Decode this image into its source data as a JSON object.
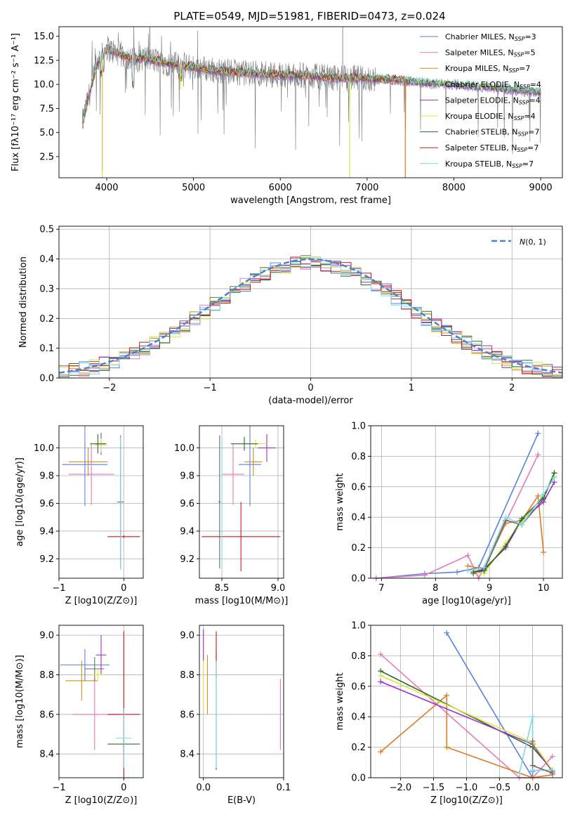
{
  "figure_title": "PLATE=0549, MJD=51981, FIBERID=0473, z=0.024",
  "colors": {
    "Chabrier MILES": "#5a7fe0",
    "Salpeter MILES": "#e879b8",
    "Kroupa MILES": "#c8901e",
    "Chabrier ELODIE": "#6b6b6b",
    "Salpeter ELODIE": "#9b30c8",
    "Kroupa ELODIE": "#d8e83a",
    "Chabrier STELIB": "#2c6a2c",
    "Salpeter STELIB": "#c01818",
    "Kroupa STELIB": "#7fd8e0",
    "data": "#7a7a7a",
    "gauss": "#4a82d0",
    "orange": "#e07a20"
  },
  "chart_data": [
    {
      "id": "spectrum",
      "type": "line",
      "title": "PLATE=0549, MJD=51981, FIBERID=0473, z=0.024",
      "xlabel": "wavelength [Angstrom, rest frame]",
      "ylabel": "Flux [fλ10⁻¹⁷ erg cm⁻² s⁻¹ A⁻¹]",
      "xlim": [
        3450,
        9250
      ],
      "ylim": [
        0.3,
        16
      ],
      "xticks": [
        "4000",
        "5000",
        "6000",
        "7000",
        "8000",
        "9000"
      ],
      "yticks": [
        "2.5",
        "5.0",
        "7.5",
        "10.0",
        "12.5",
        "15.0"
      ],
      "grid": false,
      "legend_position": "top-right",
      "legend": [
        "Chabrier MILES, N_SSP=3",
        "Salpeter MILES, N_SSP=5",
        "Kroupa MILES, N_SSP=7",
        "Chabrier ELODIE, N_SSP=4",
        "Salpeter ELODIE, N_SSP=4",
        "Kroupa ELODIE, N_SSP=4",
        "Chabrier STELIB, N_SSP=7",
        "Salpeter STELIB, N_SSP=7",
        "Kroupa STELIB, N_SSP=7"
      ],
      "legend_labels": [
        {
          "base": "Chabrier MILES, N",
          "sub": "SSP",
          "tail": "=3"
        },
        {
          "base": "Salpeter MILES, N",
          "sub": "SSP",
          "tail": "=5"
        },
        {
          "base": "Kroupa MILES, N",
          "sub": "SSP",
          "tail": "=7"
        },
        {
          "base": "Chabrier ELODIE, N",
          "sub": "SSP",
          "tail": "=4"
        },
        {
          "base": "Salpeter ELODIE, N",
          "sub": "SSP",
          "tail": "=4"
        },
        {
          "base": "Kroupa ELODIE, N",
          "sub": "SSP",
          "tail": "=4"
        },
        {
          "base": "Chabrier STELIB, N",
          "sub": "SSP",
          "tail": "=7"
        },
        {
          "base": "Salpeter STELIB, N",
          "sub": "SSP",
          "tail": "=7"
        },
        {
          "base": "Kroupa STELIB, N",
          "sub": "SSP",
          "tail": "=7"
        }
      ],
      "continuum": {
        "x": [
          3720,
          3800,
          3900,
          3950,
          4000,
          4100,
          4200,
          4300,
          4400,
          4500,
          4700,
          5000,
          5300,
          5600,
          6000,
          6300,
          6600,
          7000,
          7300,
          7600,
          8000,
          8500,
          9000
        ],
        "y": [
          6.0,
          9.0,
          12.5,
          13.0,
          13.8,
          13.3,
          13.0,
          12.5,
          12.8,
          12.6,
          12.2,
          11.8,
          11.4,
          11.2,
          11.0,
          10.9,
          10.7,
          10.6,
          10.5,
          10.2,
          10.0,
          9.6,
          9.2
        ]
      },
      "model_colors": [
        "#5a7fe0",
        "#e879b8",
        "#c8901e",
        "#6b6b6b",
        "#9b30c8",
        "#d8e83a",
        "#2c6a2c",
        "#c01818",
        "#7fd8e0"
      ]
    },
    {
      "id": "residuals",
      "type": "line",
      "xlabel": "(data-model)/error",
      "ylabel": "Normed distribution",
      "xlim": [
        -2.5,
        2.5
      ],
      "ylim": [
        0,
        0.51
      ],
      "xticks": [
        "−2",
        "−1",
        "0",
        "1",
        "2"
      ],
      "yticks": [
        "0.0",
        "0.1",
        "0.2",
        "0.3",
        "0.4",
        "0.5"
      ],
      "grid": true,
      "legend_position": "top-right",
      "legend": [
        "N(0, 1)"
      ],
      "gaussian": {
        "mean": 0,
        "sigma": 1
      },
      "hist_bin_width": 0.1
    },
    {
      "id": "age-vs-z",
      "type": "scatter",
      "xlabel": "Z [log10(Z/Z⊙)]",
      "ylabel": "age [log10(age/yr)]",
      "xlim": [
        -1.0,
        0.3
      ],
      "ylim": [
        9.06,
        10.16
      ],
      "xticks": [
        "−1",
        "0"
      ],
      "yticks": [
        "9.2",
        "9.4",
        "9.6",
        "9.8",
        "10.0"
      ],
      "grid": true,
      "points": [
        {
          "model": "Chabrier MILES",
          "x": -0.6,
          "y": 9.88,
          "xerr": 0.35,
          "yerr": 0.3
        },
        {
          "model": "Salpeter MILES",
          "x": -0.5,
          "y": 9.81,
          "xerr": 0.35,
          "yerr": 0.22
        },
        {
          "model": "Kroupa MILES",
          "x": -0.55,
          "y": 9.9,
          "xerr": 0.3,
          "yerr": 0.1
        },
        {
          "model": "Chabrier ELODIE",
          "x": -0.05,
          "y": 9.61,
          "xerr": 0.05,
          "yerr": 0.48
        },
        {
          "model": "Salpeter ELODIE",
          "x": -0.35,
          "y": 10.03,
          "xerr": 0.08,
          "yerr": 0.08
        },
        {
          "model": "Kroupa ELODIE",
          "x": -0.35,
          "y": 10.02,
          "xerr": 0.1,
          "yerr": 0.05
        },
        {
          "model": "Chabrier STELIB",
          "x": -0.4,
          "y": 10.03,
          "xerr": 0.12,
          "yerr": 0.07
        },
        {
          "model": "Salpeter STELIB",
          "x": 0.0,
          "y": 9.36,
          "xerr": 0.25,
          "yerr": 0.01
        },
        {
          "model": "Kroupa STELIB",
          "x": -0.05,
          "y": 9.6,
          "xerr": 0.02,
          "yerr": 0.48
        }
      ]
    },
    {
      "id": "age-vs-mass",
      "type": "scatter",
      "xlabel": "mass [log10(M/M⊙)]",
      "ylabel": "",
      "xlim": [
        8.3,
        9.05
      ],
      "ylim": [
        9.06,
        10.16
      ],
      "xticks": [
        "8.5",
        "9.0"
      ],
      "yticks": [
        "9.2",
        "9.4",
        "9.6",
        "9.8",
        "10.0"
      ],
      "grid": true,
      "points": [
        {
          "model": "Chabrier MILES",
          "x": 8.75,
          "y": 9.88,
          "xerr": 0.1,
          "yerr": 0.3
        },
        {
          "model": "Salpeter MILES",
          "x": 8.6,
          "y": 9.81,
          "xerr": 0.1,
          "yerr": 0.22
        },
        {
          "model": "Kroupa MILES",
          "x": 8.78,
          "y": 9.9,
          "xerr": 0.08,
          "yerr": 0.1
        },
        {
          "model": "Chabrier ELODIE",
          "x": 8.48,
          "y": 9.61,
          "xerr": 0.01,
          "yerr": 0.48
        },
        {
          "model": "Salpeter ELODIE",
          "x": 8.9,
          "y": 10.0,
          "xerr": 0.08,
          "yerr": 0.1
        },
        {
          "model": "Kroupa ELODIE",
          "x": 8.8,
          "y": 10.03,
          "xerr": 0.1,
          "yerr": 0.03
        },
        {
          "model": "Chabrier STELIB",
          "x": 8.7,
          "y": 10.03,
          "xerr": 0.12,
          "yerr": 0.05
        },
        {
          "model": "Salpeter STELIB",
          "x": 8.67,
          "y": 9.36,
          "xerr": 0.35,
          "yerr": 0.25
        },
        {
          "model": "Kroupa STELIB",
          "x": 8.5,
          "y": 9.6,
          "xerr": 0.02,
          "yerr": 0.48
        }
      ]
    },
    {
      "id": "weight-vs-age",
      "type": "line",
      "xlabel": "age [log10(age/yr)]",
      "ylabel": "mass weight",
      "xlim": [
        6.8,
        10.35
      ],
      "ylim": [
        0,
        1.0
      ],
      "xticks": [
        "7",
        "8",
        "9",
        "10"
      ],
      "yticks": [
        "0.0",
        "0.2",
        "0.4",
        "0.6",
        "0.8",
        "1.0"
      ],
      "grid": true,
      "series": [
        {
          "model": "Chabrier MILES",
          "x": [
            6.9,
            7.8,
            8.4,
            8.8,
            9.9
          ],
          "y": [
            0.0,
            0.03,
            0.04,
            0.07,
            0.95
          ]
        },
        {
          "model": "Salpeter MILES",
          "x": [
            6.9,
            7.8,
            8.6,
            8.8,
            9.9
          ],
          "y": [
            0.0,
            0.02,
            0.15,
            0.0,
            0.81
          ]
        },
        {
          "model": "orange",
          "x": [
            8.6,
            8.9,
            9.3,
            9.6,
            9.9,
            10.0
          ],
          "y": [
            0.08,
            0.06,
            0.36,
            0.38,
            0.54,
            0.17
          ]
        },
        {
          "model": "Chabrier ELODIE",
          "x": [
            8.7,
            8.9,
            9.3,
            9.6,
            10.0,
            10.2
          ],
          "y": [
            0.03,
            0.05,
            0.38,
            0.35,
            0.52,
            0.69
          ]
        },
        {
          "model": "Salpeter ELODIE",
          "x": [
            8.7,
            8.9,
            9.3,
            9.6,
            10.0,
            10.2
          ],
          "y": [
            0.04,
            0.06,
            0.2,
            0.38,
            0.5,
            0.63
          ]
        },
        {
          "model": "Kroupa ELODIE",
          "x": [
            8.7,
            8.9,
            9.3,
            9.6,
            10.0,
            10.2
          ],
          "y": [
            0.04,
            0.03,
            0.23,
            0.37,
            0.54,
            0.67
          ]
        },
        {
          "model": "Chabrier STELIB",
          "x": [
            8.7,
            8.9,
            9.3,
            9.6,
            10.0,
            10.2
          ],
          "y": [
            0.04,
            0.05,
            0.21,
            0.39,
            0.53,
            0.69
          ]
        },
        {
          "model": "Kroupa STELIB",
          "x": [
            8.6,
            8.9,
            9.3,
            9.6,
            10.0,
            10.2
          ],
          "y": [
            0.05,
            0.07,
            0.4,
            0.35,
            0.55,
            0.66
          ]
        }
      ]
    },
    {
      "id": "mass-vs-z",
      "type": "scatter",
      "xlabel": "Z [log10(Z/Z⊙)]",
      "ylabel": "mass [log10(M/M⊙)]",
      "xlim": [
        -1.0,
        0.3
      ],
      "ylim": [
        8.28,
        9.05
      ],
      "xticks": [
        "−1",
        "0"
      ],
      "yticks": [
        "8.4",
        "8.6",
        "8.8",
        "9.0"
      ],
      "grid": true,
      "points": [
        {
          "model": "Chabrier MILES",
          "x": -0.6,
          "y": 8.85,
          "xerr": 0.38,
          "yerr": 0.08
        },
        {
          "model": "Salpeter MILES",
          "x": -0.45,
          "y": 8.6,
          "xerr": 0.35,
          "yerr": 0.18
        },
        {
          "model": "Kroupa MILES",
          "x": -0.65,
          "y": 8.77,
          "xerr": 0.25,
          "yerr": 0.1
        },
        {
          "model": "Chabrier ELODIE",
          "x": -0.45,
          "y": 8.83,
          "xerr": 0.15,
          "yerr": 0.06
        },
        {
          "model": "Salpeter ELODIE",
          "x": -0.35,
          "y": 8.9,
          "xerr": 0.08,
          "yerr": 0.1
        },
        {
          "model": "Kroupa ELODIE",
          "x": -0.4,
          "y": 8.8,
          "xerr": 0.1,
          "yerr": 0.03
        },
        {
          "model": "Chabrier STELIB",
          "x": 0.0,
          "y": 8.45,
          "xerr": 0.25,
          "yerr": 0.02
        },
        {
          "model": "Salpeter STELIB",
          "x": 0.0,
          "y": 8.6,
          "xerr": 0.25,
          "yerr": 0.42
        },
        {
          "model": "Kroupa STELIB",
          "x": 0.0,
          "y": 8.48,
          "xerr": 0.12,
          "yerr": 0.15
        }
      ]
    },
    {
      "id": "mass-vs-ebv",
      "type": "scatter",
      "xlabel": "E(B-V)",
      "ylabel": "",
      "xlim": [
        -0.005,
        0.1
      ],
      "ylim": [
        8.28,
        9.05
      ],
      "xticks": [
        "0.0",
        "0.1"
      ],
      "yticks": [
        "8.4",
        "8.6",
        "8.8",
        "9.0"
      ],
      "grid": true,
      "points": [
        {
          "model": "Kroupa ELODIE",
          "x": 0.0,
          "y": 8.75,
          "xerr": 0.0,
          "yerr": 0.13
        },
        {
          "model": "Salpeter ELODIE",
          "x": 0.0,
          "y": 8.95,
          "xerr": 0.0,
          "yerr": 0.08
        },
        {
          "model": "Kroupa MILES",
          "x": 0.005,
          "y": 8.75,
          "xerr": 0.0,
          "yerr": 0.15
        },
        {
          "model": "Chabrier STELIB",
          "x": 0.016,
          "y": 8.62,
          "xerr": 0.0,
          "yerr": 0.3
        },
        {
          "model": "Salpeter STELIB",
          "x": 0.016,
          "y": 8.9,
          "xerr": 0.0,
          "yerr": 0.12
        },
        {
          "model": "Kroupa STELIB",
          "x": 0.016,
          "y": 8.6,
          "xerr": 0.0,
          "yerr": 0.27
        },
        {
          "model": "Salpeter MILES",
          "x": 0.096,
          "y": 8.6,
          "xerr": 0.0,
          "yerr": 0.18
        }
      ]
    },
    {
      "id": "weight-vs-z",
      "type": "line",
      "xlabel": "Z [log10(Z/Z⊙)]",
      "ylabel": "mass weight",
      "xlim": [
        -2.45,
        0.45
      ],
      "ylim": [
        0,
        1.0
      ],
      "xticks": [
        "−2.0",
        "−1.5",
        "−1.0",
        "−0.5",
        "0.0"
      ],
      "yticks": [
        "0.0",
        "0.2",
        "0.4",
        "0.6",
        "0.8",
        "1.0"
      ],
      "grid": true,
      "series": [
        {
          "model": "Chabrier MILES",
          "x": [
            -1.3,
            0.0,
            0.0
          ],
          "y": [
            0.95,
            0.0,
            0.04
          ]
        },
        {
          "model": "Salpeter MILES",
          "x": [
            -2.3,
            -0.2,
            0.0,
            0.3
          ],
          "y": [
            0.81,
            0.0,
            0.0,
            0.14
          ]
        },
        {
          "model": "orange",
          "x": [
            -2.3,
            -1.3,
            -1.3,
            0.0,
            0.3
          ],
          "y": [
            0.17,
            0.54,
            0.2,
            0.0,
            0.02
          ]
        },
        {
          "model": "Chabrier STELIB",
          "x": [
            -2.3,
            0.0,
            0.3
          ],
          "y": [
            0.7,
            0.2,
            0.05
          ]
        },
        {
          "model": "Salpeter ELODIE",
          "x": [
            -2.3,
            0.0,
            0.3
          ],
          "y": [
            0.63,
            0.22,
            0.04
          ]
        },
        {
          "model": "Kroupa ELODIE",
          "x": [
            -2.3,
            0.0,
            0.3
          ],
          "y": [
            0.67,
            0.23,
            0.05
          ]
        },
        {
          "model": "Kroupa STELIB",
          "x": [
            -0.2,
            0.0,
            0.0,
            0.3
          ],
          "y": [
            0.03,
            0.4,
            0.05,
            0.05
          ]
        },
        {
          "model": "Chabrier ELODIE",
          "x": [
            0.0,
            0.0,
            0.3
          ],
          "y": [
            0.24,
            0.08,
            0.03
          ]
        }
      ]
    }
  ]
}
